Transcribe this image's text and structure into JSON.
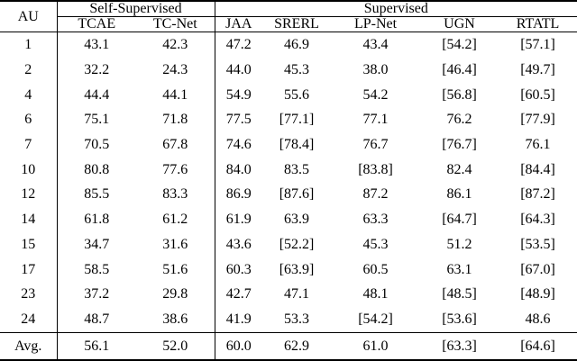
{
  "page": {
    "background_color": "#ffffff",
    "text_color": "#000000",
    "rule_color": "#000000"
  },
  "table": {
    "corner_label": "AU",
    "groups": [
      {
        "label": "Self-Supervised",
        "span": 2
      },
      {
        "label": "Supervised",
        "span": 5
      }
    ],
    "columns": [
      {
        "label": "TCAE",
        "bold": false
      },
      {
        "label": "TC-Net",
        "bold": false
      },
      {
        "label": "JAA",
        "bold": false
      },
      {
        "label": "SRERL",
        "bold": false
      },
      {
        "label": "LP-Net",
        "bold": false
      },
      {
        "label": "UGN",
        "bold": false
      },
      {
        "label": "RTATL",
        "bold": true
      }
    ],
    "rows": [
      {
        "au": "1",
        "bold_label": false,
        "cells": [
          {
            "t": "43.1",
            "b": false
          },
          {
            "t": "42.3",
            "b": false
          },
          {
            "t": "47.2",
            "b": false
          },
          {
            "t": "46.9",
            "b": false
          },
          {
            "t": "43.4",
            "b": false
          },
          {
            "t": "[54.2]",
            "b": false
          },
          {
            "t": "[57.1]",
            "b": true
          }
        ]
      },
      {
        "au": "2",
        "bold_label": false,
        "cells": [
          {
            "t": "32.2",
            "b": false
          },
          {
            "t": "24.3",
            "b": false
          },
          {
            "t": "44.0",
            "b": false
          },
          {
            "t": "45.3",
            "b": false
          },
          {
            "t": "38.0",
            "b": false
          },
          {
            "t": "[46.4]",
            "b": false
          },
          {
            "t": "[49.7]",
            "b": true
          }
        ]
      },
      {
        "au": "4",
        "bold_label": false,
        "cells": [
          {
            "t": "44.4",
            "b": false
          },
          {
            "t": "44.1",
            "b": false
          },
          {
            "t": "54.9",
            "b": false
          },
          {
            "t": "55.6",
            "b": false
          },
          {
            "t": "54.2",
            "b": false
          },
          {
            "t": "[56.8]",
            "b": false
          },
          {
            "t": "[60.5]",
            "b": true
          }
        ]
      },
      {
        "au": "6",
        "bold_label": false,
        "cells": [
          {
            "t": "75.1",
            "b": false
          },
          {
            "t": "71.8",
            "b": false
          },
          {
            "t": "77.5",
            "b": false
          },
          {
            "t": "[77.1]",
            "b": false
          },
          {
            "t": "77.1",
            "b": false
          },
          {
            "t": "76.2",
            "b": false
          },
          {
            "t": "[77.9]",
            "b": true
          }
        ]
      },
      {
        "au": "7",
        "bold_label": false,
        "cells": [
          {
            "t": "70.5",
            "b": false
          },
          {
            "t": "67.8",
            "b": false
          },
          {
            "t": "74.6",
            "b": false
          },
          {
            "t": "[78.4]",
            "b": true
          },
          {
            "t": "76.7",
            "b": false
          },
          {
            "t": "[76.7]",
            "b": false
          },
          {
            "t": "76.1",
            "b": false
          }
        ]
      },
      {
        "au": "10",
        "bold_label": false,
        "cells": [
          {
            "t": "80.8",
            "b": false
          },
          {
            "t": "77.6",
            "b": false
          },
          {
            "t": "84.0",
            "b": false
          },
          {
            "t": "83.5",
            "b": false
          },
          {
            "t": "[83.8]",
            "b": false
          },
          {
            "t": "82.4",
            "b": false
          },
          {
            "t": "[84.4]",
            "b": true
          }
        ]
      },
      {
        "au": "12",
        "bold_label": false,
        "cells": [
          {
            "t": "85.5",
            "b": false
          },
          {
            "t": "83.3",
            "b": false
          },
          {
            "t": "86.9",
            "b": false
          },
          {
            "t": "[87.6]",
            "b": true
          },
          {
            "t": "87.2",
            "b": false
          },
          {
            "t": "86.1",
            "b": false
          },
          {
            "t": "[87.2]",
            "b": false
          }
        ]
      },
      {
        "au": "14",
        "bold_label": false,
        "cells": [
          {
            "t": "61.8",
            "b": false
          },
          {
            "t": "61.2",
            "b": false
          },
          {
            "t": "61.9",
            "b": false
          },
          {
            "t": "63.9",
            "b": false
          },
          {
            "t": "63.3",
            "b": false
          },
          {
            "t": "[64.7]",
            "b": true
          },
          {
            "t": "[64.3]",
            "b": false
          }
        ]
      },
      {
        "au": "15",
        "bold_label": false,
        "cells": [
          {
            "t": "34.7",
            "b": false
          },
          {
            "t": "31.6",
            "b": false
          },
          {
            "t": "43.6",
            "b": false
          },
          {
            "t": "[52.2]",
            "b": false
          },
          {
            "t": "45.3",
            "b": false
          },
          {
            "t": "51.2",
            "b": false
          },
          {
            "t": "[53.5]",
            "b": true
          }
        ]
      },
      {
        "au": "17",
        "bold_label": false,
        "cells": [
          {
            "t": "58.5",
            "b": false
          },
          {
            "t": "51.6",
            "b": false
          },
          {
            "t": "60.3",
            "b": false
          },
          {
            "t": "[63.9]",
            "b": false
          },
          {
            "t": "60.5",
            "b": false
          },
          {
            "t": "63.1",
            "b": false
          },
          {
            "t": "[67.0]",
            "b": true
          }
        ]
      },
      {
        "au": "23",
        "bold_label": false,
        "cells": [
          {
            "t": "37.2",
            "b": false
          },
          {
            "t": "29.8",
            "b": false
          },
          {
            "t": "42.7",
            "b": false
          },
          {
            "t": "47.1",
            "b": false
          },
          {
            "t": "48.1",
            "b": false
          },
          {
            "t": "[48.5]",
            "b": false
          },
          {
            "t": "[48.9]",
            "b": true
          }
        ]
      },
      {
        "au": "24",
        "bold_label": false,
        "cells": [
          {
            "t": "48.7",
            "b": false
          },
          {
            "t": "38.6",
            "b": false
          },
          {
            "t": "41.9",
            "b": false
          },
          {
            "t": "53.3",
            "b": false
          },
          {
            "t": "[54.2]",
            "b": true
          },
          {
            "t": "[53.6]",
            "b": false
          },
          {
            "t": "48.6",
            "b": false
          }
        ]
      },
      {
        "au": "Avg.",
        "bold_label": true,
        "cells": [
          {
            "t": "56.1",
            "b": false
          },
          {
            "t": "52.0",
            "b": false
          },
          {
            "t": "60.0",
            "b": false
          },
          {
            "t": "62.9",
            "b": false
          },
          {
            "t": "61.0",
            "b": false
          },
          {
            "t": "[63.3]",
            "b": false
          },
          {
            "t": "[64.6]",
            "b": true
          }
        ]
      }
    ]
  }
}
